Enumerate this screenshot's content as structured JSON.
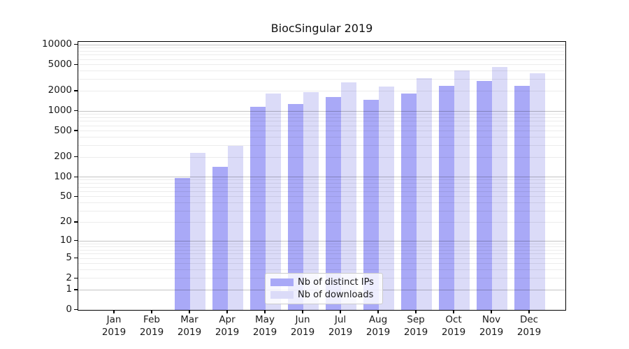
{
  "chart_data": {
    "type": "bar",
    "title": "BiocSingular 2019",
    "yscale": "log1p",
    "ylim": [
      0,
      10500
    ],
    "grid": true,
    "y_ticks": [
      0,
      1,
      2,
      5,
      10,
      20,
      50,
      100,
      200,
      500,
      1000,
      2000,
      5000,
      10000
    ],
    "categories": [
      {
        "month": "Jan",
        "year": "2019"
      },
      {
        "month": "Feb",
        "year": "2019"
      },
      {
        "month": "Mar",
        "year": "2019"
      },
      {
        "month": "Apr",
        "year": "2019"
      },
      {
        "month": "May",
        "year": "2019"
      },
      {
        "month": "Jun",
        "year": "2019"
      },
      {
        "month": "Jul",
        "year": "2019"
      },
      {
        "month": "Aug",
        "year": "2019"
      },
      {
        "month": "Sep",
        "year": "2019"
      },
      {
        "month": "Oct",
        "year": "2019"
      },
      {
        "month": "Nov",
        "year": "2019"
      },
      {
        "month": "Dec",
        "year": "2019"
      }
    ],
    "series": [
      {
        "name": "Nb of distinct IPs",
        "color": "#a9a9f7",
        "values": [
          0,
          0,
          95,
          140,
          1130,
          1250,
          1590,
          1470,
          1830,
          2390,
          2770,
          2390
        ]
      },
      {
        "name": "Nb of downloads",
        "color": "#dbdbf8",
        "values": [
          0,
          0,
          230,
          290,
          1800,
          1880,
          2700,
          2330,
          3120,
          4080,
          4500,
          3700
        ]
      }
    ],
    "legend": {
      "position": "lower center"
    },
    "colors": {
      "major_grid": "#c2c2c2",
      "minor_grid": "#ebebeb",
      "axis": "#000000",
      "text": "#1a1a1a",
      "background": "#ffffff"
    }
  }
}
